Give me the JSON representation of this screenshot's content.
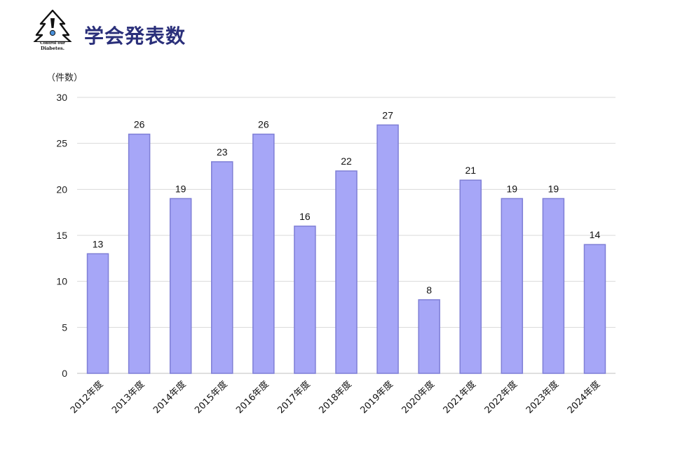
{
  "header": {
    "title": "学会発表数",
    "logo": {
      "line1": "Control our",
      "line2": "Diabetes."
    }
  },
  "colors": {
    "bar_fill": "#a6a6f7",
    "bar_stroke": "#7f7fd6",
    "title": "#2a2f7a",
    "grid": "#d9d9d9"
  },
  "chart_data": {
    "type": "bar",
    "title": "学会発表数",
    "ylabel": "（件数）",
    "xlabel": "",
    "categories": [
      "2012年度",
      "2013年度",
      "2014年度",
      "2015年度",
      "2016年度",
      "2017年度",
      "2018年度",
      "2019年度",
      "2020年度",
      "2021年度",
      "2022年度",
      "2023年度",
      "2024年度"
    ],
    "values": [
      13,
      26,
      19,
      23,
      26,
      16,
      22,
      27,
      8,
      21,
      19,
      19,
      14
    ],
    "ylim": [
      0,
      30
    ],
    "yticks": [
      0,
      5,
      10,
      15,
      20,
      25,
      30
    ],
    "grid": true,
    "data_labels": true
  }
}
